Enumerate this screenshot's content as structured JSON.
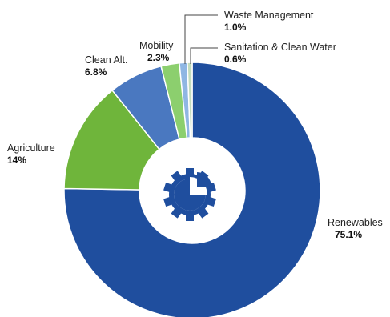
{
  "chart_data": {
    "type": "pie",
    "donut": true,
    "categories": [
      "Renewables",
      "Agriculture",
      "Clean Alt.",
      "Mobility",
      "Waste Management",
      "Sanitation & Clean Water"
    ],
    "values": [
      75.1,
      14,
      6.8,
      2.3,
      1.0,
      0.6
    ],
    "value_labels": [
      "75.1%",
      "14%",
      "6.8%",
      "2.3%",
      "1.0%",
      "0.6%"
    ],
    "colors": [
      "#1f4e9e",
      "#6fb53b",
      "#4a78c0",
      "#8ccf6e",
      "#8fb6e3",
      "#c3dcbc"
    ],
    "center_icon": "gear-pie-chart-icon",
    "title": "",
    "legend": "none"
  }
}
